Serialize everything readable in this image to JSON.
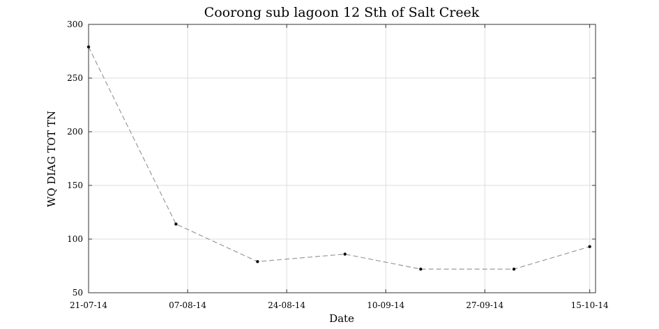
{
  "chart_data": {
    "type": "line",
    "title": "Coorong sub lagoon 12 Sth of Salt Creek",
    "xlabel": "Date",
    "ylabel": "WQ DIAG TOT TN",
    "xlim": [
      "2014-07-21",
      "2014-10-16"
    ],
    "ylim": [
      50,
      300
    ],
    "yticks": [
      50,
      100,
      150,
      200,
      250,
      300
    ],
    "xticks": [
      {
        "date": "2014-07-21",
        "label": "21-07-14"
      },
      {
        "date": "2014-08-07",
        "label": "07-08-14"
      },
      {
        "date": "2014-08-24",
        "label": "24-08-14"
      },
      {
        "date": "2014-09-10",
        "label": "10-09-14"
      },
      {
        "date": "2014-09-27",
        "label": "27-09-14"
      },
      {
        "date": "2014-10-15",
        "label": "15-10-14"
      }
    ],
    "grid": true,
    "series": [
      {
        "color": "#9a9a9a",
        "marker_color": "#111111",
        "points": [
          {
            "x": "2014-07-21",
            "y": 279
          },
          {
            "x": "2014-08-05",
            "y": 114
          },
          {
            "x": "2014-08-19",
            "y": 79
          },
          {
            "x": "2014-09-03",
            "y": 86
          },
          {
            "x": "2014-09-16",
            "y": 72
          },
          {
            "x": "2014-10-02",
            "y": 72
          },
          {
            "x": "2014-10-15",
            "y": 93
          }
        ]
      }
    ]
  }
}
